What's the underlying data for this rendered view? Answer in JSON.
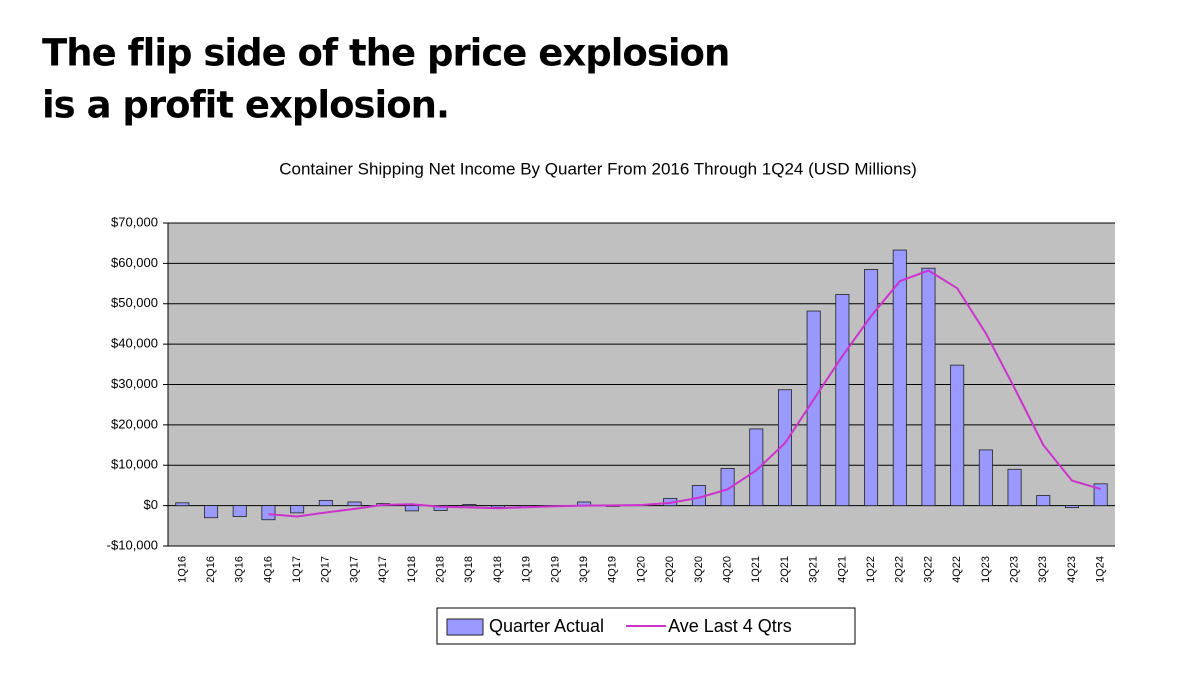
{
  "headline": [
    "The flip side of the price explosion",
    "is a profit explosion."
  ],
  "chart_data": {
    "type": "bar",
    "title": "Container Shipping Net Income By Quarter From 2016 Through 1Q24 (USD Millions)",
    "categories": [
      "1Q16",
      "2Q16",
      "3Q16",
      "4Q16",
      "1Q17",
      "2Q17",
      "3Q17",
      "4Q17",
      "1Q18",
      "2Q18",
      "3Q18",
      "4Q18",
      "1Q19",
      "2Q19",
      "3Q19",
      "4Q19",
      "1Q20",
      "2Q20",
      "3Q20",
      "4Q20",
      "1Q21",
      "2Q21",
      "3Q21",
      "4Q21",
      "1Q22",
      "2Q22",
      "3Q22",
      "4Q22",
      "1Q23",
      "2Q23",
      "3Q23",
      "4Q23",
      "1Q24"
    ],
    "series": [
      {
        "name": "Quarter Actual",
        "type": "bar",
        "color": "#9999ff",
        "values": [
          700,
          -3000,
          -2700,
          -3500,
          -1800,
          1300,
          900,
          500,
          -1300,
          -1200,
          300,
          -400,
          -300,
          -200,
          900,
          -200,
          200,
          1800,
          5000,
          9200,
          19000,
          28700,
          48200,
          52300,
          58500,
          63300,
          58800,
          34800,
          13800,
          9000,
          2500,
          -500,
          5400
        ]
      },
      {
        "name": "Ave Last 4 Qtrs",
        "type": "line",
        "color": "#cc33cc",
        "values": [
          null,
          null,
          null,
          -2100,
          -2700,
          -1700,
          -800,
          200,
          350,
          -275,
          -425,
          -650,
          -400,
          -150,
          0,
          50,
          150,
          675,
          1950,
          4050,
          8750,
          15475,
          26275,
          37050,
          46925,
          55575,
          58225,
          53850,
          42675,
          29100,
          15025,
          6200,
          4100
        ]
      }
    ],
    "ylim": [
      -10000,
      70000
    ],
    "yticks": [
      {
        "value": -10000,
        "label": "-$10,000"
      },
      {
        "value": 0,
        "label": "$0"
      },
      {
        "value": 10000,
        "label": "$10,000"
      },
      {
        "value": 20000,
        "label": "$20,000"
      },
      {
        "value": 30000,
        "label": "$30,000"
      },
      {
        "value": 40000,
        "label": "$40,000"
      },
      {
        "value": 50000,
        "label": "$50,000"
      },
      {
        "value": 60000,
        "label": "$60,000"
      },
      {
        "value": 70000,
        "label": "$70,000"
      }
    ],
    "grid": true,
    "plot_background": "#c0c0c0",
    "legend": "bottom"
  }
}
